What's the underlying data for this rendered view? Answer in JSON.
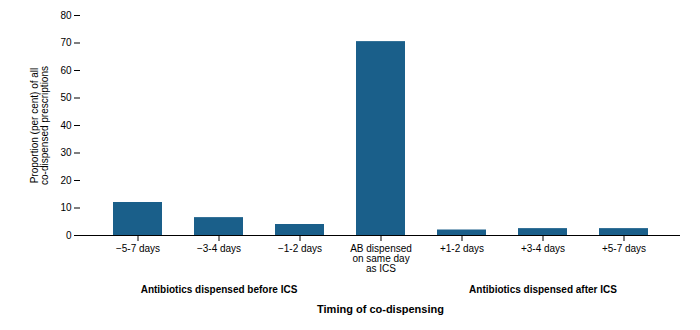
{
  "chart_data": {
    "type": "bar",
    "categories": [
      "−5-7 days",
      "−3-4 days",
      "−1-2 days",
      "AB dispensed\non same day\nas ICS",
      "+1-2 days",
      "+3-4 days",
      "+5-7 days"
    ],
    "values": [
      12,
      6.5,
      4,
      70.5,
      2,
      2.5,
      2.5
    ],
    "color": "#1a5f8a",
    "xlabel": "Timing of co-dispensing",
    "ylabel": "Proportion (per cent) of all\nco-dispensed prescriptions",
    "ylim": [
      0,
      80
    ],
    "yticks": [
      0,
      10,
      20,
      30,
      40,
      50,
      60,
      70,
      80
    ],
    "grid": false,
    "annotations": [
      {
        "text": "Antibiotics dispensed before ICS",
        "categories": [
          "−5-7 days",
          "−3-4 days",
          "−1-2 days"
        ]
      },
      {
        "text": "Antibiotics dispensed after ICS",
        "categories": [
          "+1-2 days",
          "+3-4 days",
          "+5-7 days"
        ]
      }
    ]
  }
}
